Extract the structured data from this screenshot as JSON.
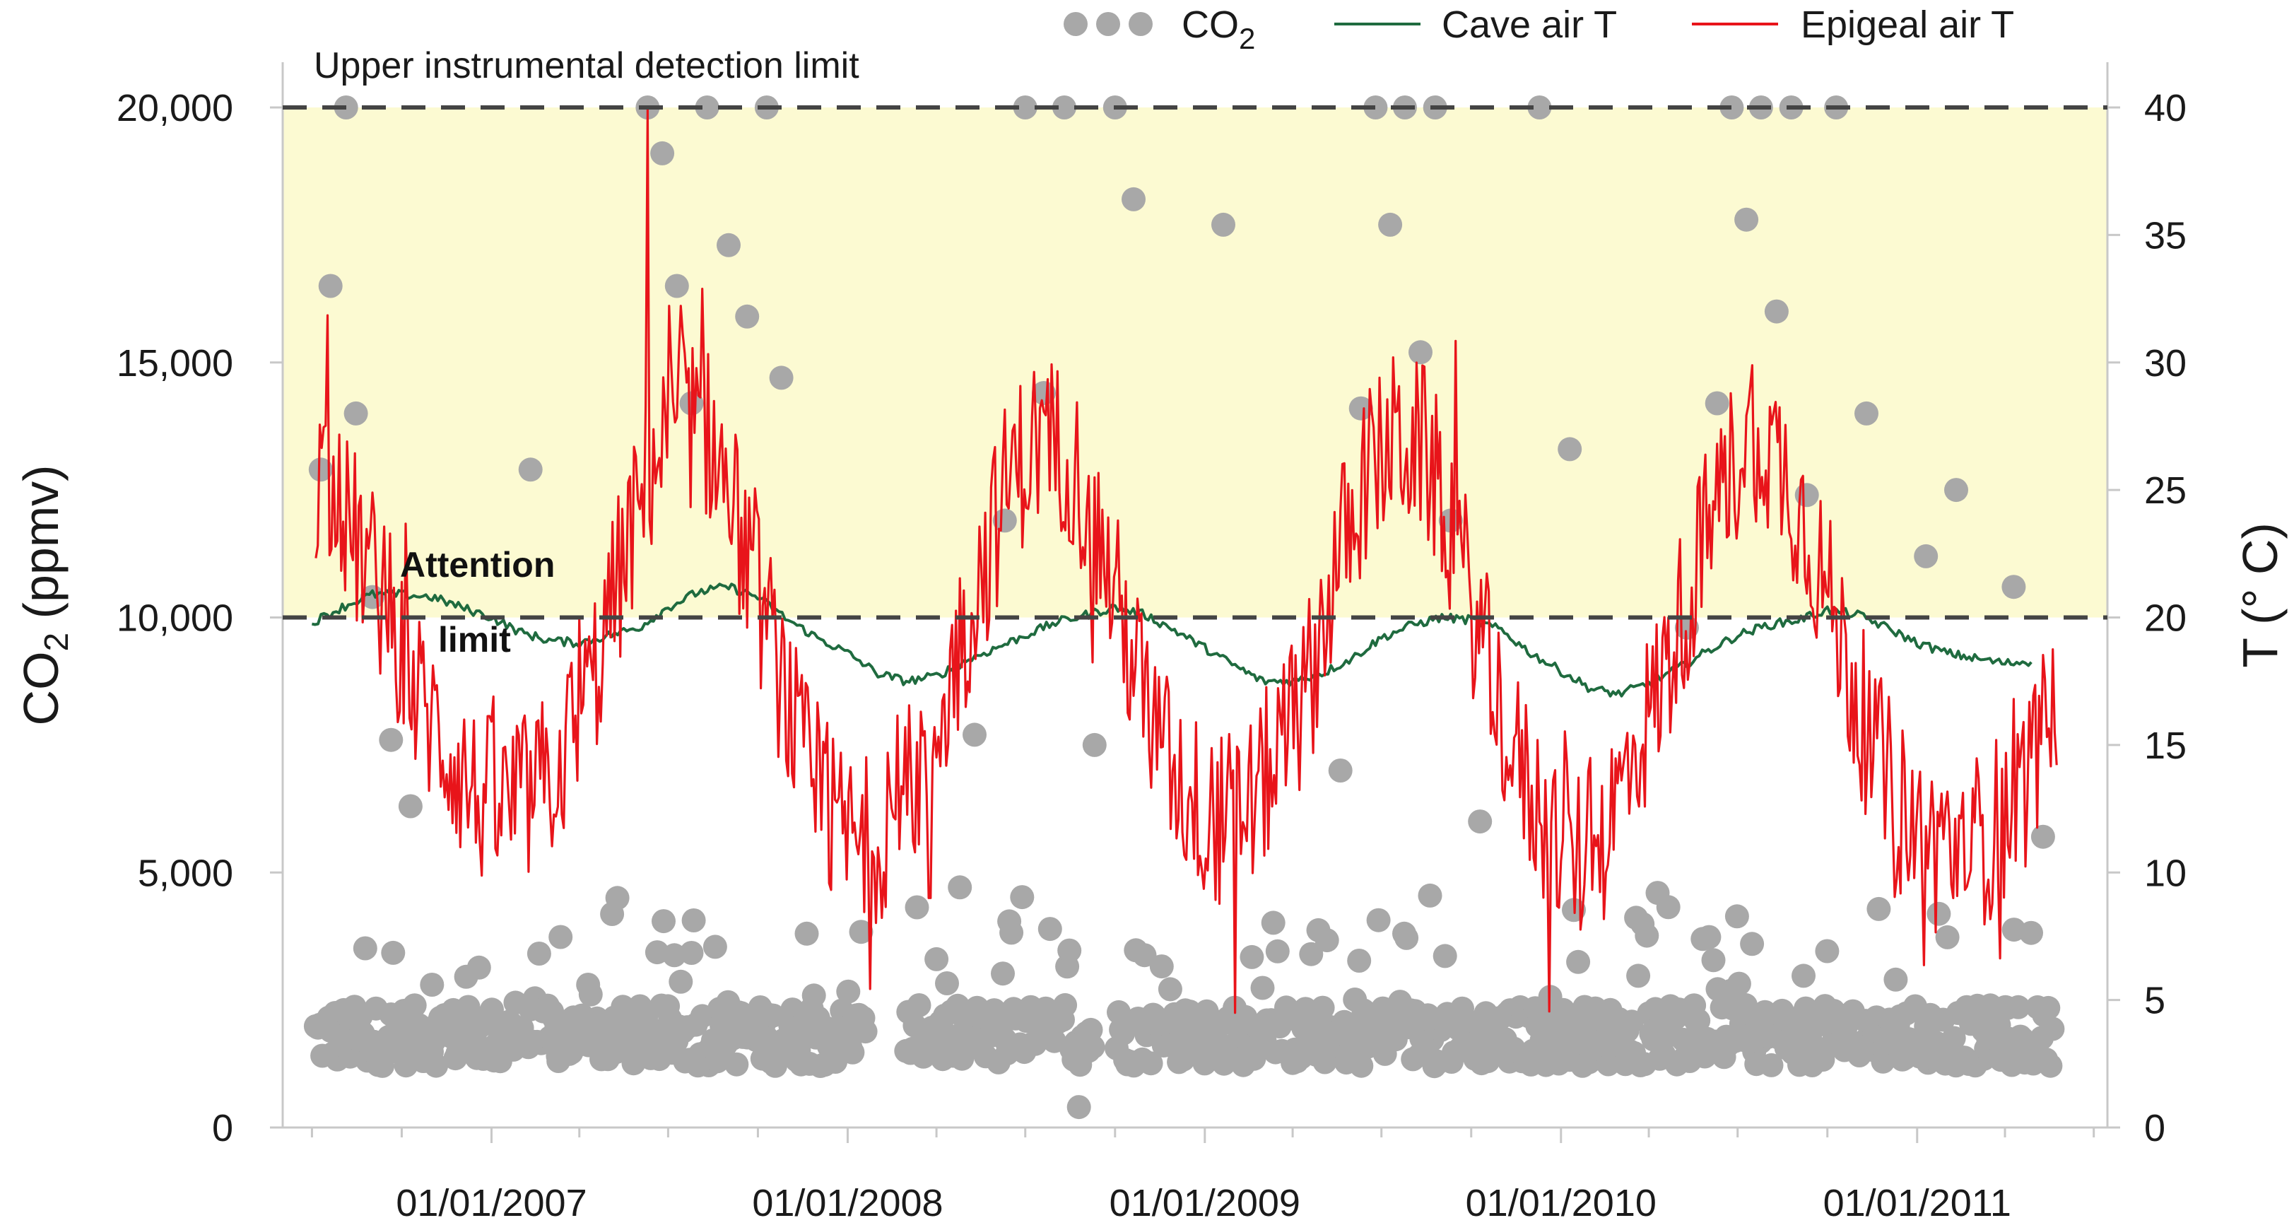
{
  "chart_data": {
    "type": "scatter+line",
    "title": "",
    "xlabel": "",
    "ylabel_left": "CO2 (ppmv)",
    "ylabel_left_main": "CO",
    "ylabel_left_sub": "2",
    "ylabel_left_unit": " (ppmv)",
    "ylabel_right": "T (° C)",
    "x_range": [
      "2006-06-01",
      "2011-07-15"
    ],
    "ylim_left": [
      0,
      20000
    ],
    "ylim_right": [
      0,
      40
    ],
    "x_ticks": [
      "01/01/2007",
      "01/01/2008",
      "01/01/2009",
      "01/01/2010",
      "01/01/2011"
    ],
    "y_left_ticks": [
      "0",
      "5,000",
      "10,000",
      "15,000",
      "20,000"
    ],
    "y_right_ticks": [
      "0",
      "5",
      "10",
      "15",
      "20",
      "25",
      "30",
      "35",
      "40"
    ],
    "legend": [
      {
        "label_main": "CO",
        "label_sub": "2",
        "style": "dots",
        "color": "#a8a8a8"
      },
      {
        "label": "Cave air T",
        "style": "line",
        "color": "#1f6b3f"
      },
      {
        "label": "Epigeal air T",
        "style": "line",
        "color": "#e8141a"
      }
    ],
    "reference_lines": [
      {
        "label": "Upper instrumental detection limit",
        "value": 20000,
        "axis": "left"
      },
      {
        "label_line1": "Attention",
        "label_line2": "limit",
        "value": 10000,
        "axis": "left"
      }
    ],
    "shaded_band": {
      "from": 10000,
      "to": 20000,
      "color": "#fcfad2"
    },
    "colors": {
      "co2": "#a8a8a8",
      "cave": "#1f6b3f",
      "epigeal": "#e8141a",
      "refline": "#444444"
    },
    "series": [
      {
        "name": "Cave air T",
        "axis": "right",
        "points": [
          [
            "2006-07-01",
            19.8
          ],
          [
            "2006-08-01",
            20.4
          ],
          [
            "2006-09-01",
            20.9
          ],
          [
            "2006-10-01",
            20.9
          ],
          [
            "2006-11-01",
            20.8
          ],
          [
            "2006-12-01",
            20.4
          ],
          [
            "2007-01-01",
            20.0
          ],
          [
            "2007-02-01",
            19.4
          ],
          [
            "2007-03-01",
            19.1
          ],
          [
            "2007-04-01",
            19.0
          ],
          [
            "2007-05-01",
            19.3
          ],
          [
            "2007-06-01",
            19.6
          ],
          [
            "2007-07-01",
            20.4
          ],
          [
            "2007-08-01",
            21.0
          ],
          [
            "2007-09-01",
            21.2
          ],
          [
            "2007-10-01",
            20.8
          ],
          [
            "2007-11-01",
            19.9
          ],
          [
            "2007-12-01",
            19.2
          ],
          [
            "2008-01-01",
            18.6
          ],
          [
            "2008-02-01",
            17.8
          ],
          [
            "2008-03-01",
            17.5
          ],
          [
            "2008-04-01",
            17.7
          ],
          [
            "2008-05-01",
            18.3
          ],
          [
            "2008-06-01",
            18.8
          ],
          [
            "2008-07-01",
            19.3
          ],
          [
            "2008-08-01",
            19.8
          ],
          [
            "2008-09-01",
            20.1
          ],
          [
            "2008-10-01",
            20.4
          ],
          [
            "2008-11-01",
            20.1
          ],
          [
            "2008-12-01",
            19.5
          ],
          [
            "2009-01-01",
            18.8
          ],
          [
            "2009-02-01",
            18.1
          ],
          [
            "2009-03-01",
            17.5
          ],
          [
            "2009-04-01",
            17.5
          ],
          [
            "2009-05-01",
            17.8
          ],
          [
            "2009-06-01",
            18.4
          ],
          [
            "2009-07-01",
            19.2
          ],
          [
            "2009-08-01",
            19.7
          ],
          [
            "2009-09-01",
            20.0
          ],
          [
            "2009-10-01",
            19.9
          ],
          [
            "2009-11-01",
            19.5
          ],
          [
            "2009-12-01",
            18.6
          ],
          [
            "2010-01-01",
            17.9
          ],
          [
            "2010-02-01",
            17.2
          ],
          [
            "2010-03-01",
            17.0
          ],
          [
            "2010-04-01",
            17.4
          ],
          [
            "2010-05-01",
            18.0
          ],
          [
            "2010-06-01",
            18.7
          ],
          [
            "2010-07-01",
            19.3
          ],
          [
            "2010-08-01",
            19.7
          ],
          [
            "2010-09-01",
            19.9
          ],
          [
            "2010-10-01",
            20.3
          ],
          [
            "2010-11-01",
            20.1
          ],
          [
            "2010-12-01",
            19.6
          ],
          [
            "2011-01-01",
            19.0
          ],
          [
            "2011-02-01",
            18.6
          ],
          [
            "2011-03-01",
            18.4
          ],
          [
            "2011-04-01",
            18.2
          ],
          [
            "2011-05-01",
            18.3
          ]
        ]
      },
      {
        "name": "Epigeal air T",
        "axis": "right",
        "monthly_means": [
          [
            "2006-07-15",
            25.5
          ],
          [
            "2006-08-15",
            23.0
          ],
          [
            "2006-09-15",
            20.5
          ],
          [
            "2006-10-15",
            17.0
          ],
          [
            "2006-11-15",
            15.0
          ],
          [
            "2006-12-15",
            13.0
          ],
          [
            "2007-01-15",
            12.5
          ],
          [
            "2007-02-15",
            13.0
          ],
          [
            "2007-03-15",
            14.5
          ],
          [
            "2007-04-15",
            17.5
          ],
          [
            "2007-05-15",
            22.0
          ],
          [
            "2007-06-15",
            26.0
          ],
          [
            "2007-07-15",
            28.0
          ],
          [
            "2007-08-15",
            27.0
          ],
          [
            "2007-09-15",
            23.0
          ],
          [
            "2007-10-15",
            19.0
          ],
          [
            "2007-11-15",
            14.5
          ],
          [
            "2007-12-15",
            12.0
          ],
          [
            "2008-01-15",
            11.0
          ],
          [
            "2008-02-15",
            12.0
          ],
          [
            "2008-03-15",
            14.0
          ],
          [
            "2008-04-15",
            17.5
          ],
          [
            "2008-05-15",
            21.5
          ],
          [
            "2008-06-15",
            25.5
          ],
          [
            "2008-07-15",
            27.0
          ],
          [
            "2008-08-15",
            26.5
          ],
          [
            "2008-09-15",
            23.0
          ],
          [
            "2008-10-15",
            19.0
          ],
          [
            "2008-11-15",
            15.0
          ],
          [
            "2008-12-15",
            13.0
          ],
          [
            "2009-01-15",
            12.0
          ],
          [
            "2009-02-15",
            12.5
          ],
          [
            "2009-03-15",
            14.5
          ],
          [
            "2009-04-15",
            17.0
          ],
          [
            "2009-05-15",
            22.0
          ],
          [
            "2009-06-15",
            25.5
          ],
          [
            "2009-07-15",
            27.0
          ],
          [
            "2009-08-15",
            26.5
          ],
          [
            "2009-09-15",
            23.0
          ],
          [
            "2009-10-15",
            18.5
          ],
          [
            "2009-11-15",
            14.5
          ],
          [
            "2009-12-15",
            12.0
          ],
          [
            "2010-01-15",
            10.5
          ],
          [
            "2010-02-15",
            11.5
          ],
          [
            "2010-03-15",
            14.5
          ],
          [
            "2010-04-15",
            17.5
          ],
          [
            "2010-05-15",
            21.5
          ],
          [
            "2010-06-15",
            25.0
          ],
          [
            "2010-07-15",
            27.5
          ],
          [
            "2010-08-15",
            26.0
          ],
          [
            "2010-09-15",
            23.0
          ],
          [
            "2010-10-15",
            19.0
          ],
          [
            "2010-11-15",
            15.0
          ],
          [
            "2010-12-15",
            12.5
          ],
          [
            "2011-01-15",
            11.0
          ],
          [
            "2011-02-15",
            11.0
          ],
          [
            "2011-03-15",
            11.5
          ],
          [
            "2011-04-15",
            13.0
          ],
          [
            "2011-05-15",
            15.5
          ]
        ],
        "extremes": [
          [
            "2007-06-10",
            40.0
          ],
          [
            "2009-02-01",
            4.5
          ],
          [
            "2008-03-25",
            9.0
          ]
        ]
      },
      {
        "name": "CO2",
        "axis": "left",
        "points_ppmv": [
          [
            "2006-07-10",
            12900
          ],
          [
            "2006-07-20",
            16500
          ],
          [
            "2006-08-05",
            20000
          ],
          [
            "2006-08-15",
            14000
          ],
          [
            "2006-09-01",
            10400
          ],
          [
            "2006-09-20",
            7600
          ],
          [
            "2006-10-10",
            6300
          ],
          [
            "2006-11-01",
            2800
          ],
          [
            "2006-12-01",
            1600
          ],
          [
            "2007-01-10",
            1300
          ],
          [
            "2007-02-10",
            12900
          ],
          [
            "2007-03-10",
            1400
          ],
          [
            "2007-04-10",
            2800
          ],
          [
            "2007-05-10",
            4500
          ],
          [
            "2007-06-10",
            20000
          ],
          [
            "2007-06-25",
            19100
          ],
          [
            "2007-07-10",
            16500
          ],
          [
            "2007-07-25",
            14200
          ],
          [
            "2007-08-10",
            20000
          ],
          [
            "2007-09-01",
            17300
          ],
          [
            "2007-09-20",
            15900
          ],
          [
            "2007-10-10",
            20000
          ],
          [
            "2007-10-25",
            14700
          ],
          [
            "2007-11-20",
            3800
          ],
          [
            "2007-12-20",
            1700
          ],
          [
            "2008-03-01",
            1500
          ],
          [
            "2008-04-01",
            3300
          ],
          [
            "2008-05-10",
            7700
          ],
          [
            "2008-06-10",
            11900
          ],
          [
            "2008-07-01",
            20000
          ],
          [
            "2008-07-20",
            14400
          ],
          [
            "2008-08-10",
            20000
          ],
          [
            "2008-08-25",
            400
          ],
          [
            "2008-09-10",
            7500
          ],
          [
            "2008-10-01",
            20000
          ],
          [
            "2008-10-20",
            18200
          ],
          [
            "2008-11-10",
            2200
          ],
          [
            "2008-12-10",
            1800
          ],
          [
            "2009-01-20",
            17700
          ],
          [
            "2009-02-20",
            1700
          ],
          [
            "2009-03-20",
            2100
          ],
          [
            "2009-04-20",
            3400
          ],
          [
            "2009-05-20",
            7000
          ],
          [
            "2009-06-10",
            14100
          ],
          [
            "2009-06-25",
            20000
          ],
          [
            "2009-07-10",
            17700
          ],
          [
            "2009-07-25",
            20000
          ],
          [
            "2009-08-10",
            15200
          ],
          [
            "2009-08-25",
            20000
          ],
          [
            "2009-09-10",
            11900
          ],
          [
            "2009-10-10",
            6000
          ],
          [
            "2009-11-10",
            2300
          ],
          [
            "2009-12-10",
            20000
          ],
          [
            "2010-01-10",
            13300
          ],
          [
            "2010-02-10",
            2000
          ],
          [
            "2010-03-10",
            1900
          ],
          [
            "2010-04-10",
            4600
          ],
          [
            "2010-05-10",
            9800
          ],
          [
            "2010-06-10",
            14200
          ],
          [
            "2010-06-25",
            20000
          ],
          [
            "2010-07-10",
            17800
          ],
          [
            "2010-07-25",
            20000
          ],
          [
            "2010-08-10",
            16000
          ],
          [
            "2010-08-25",
            20000
          ],
          [
            "2010-09-10",
            12400
          ],
          [
            "2010-10-10",
            20000
          ],
          [
            "2010-11-10",
            14000
          ],
          [
            "2010-12-10",
            2900
          ],
          [
            "2011-01-10",
            11200
          ],
          [
            "2011-02-10",
            12500
          ],
          [
            "2011-03-10",
            1900
          ],
          [
            "2011-04-10",
            10600
          ],
          [
            "2011-05-10",
            5700
          ]
        ]
      }
    ]
  }
}
